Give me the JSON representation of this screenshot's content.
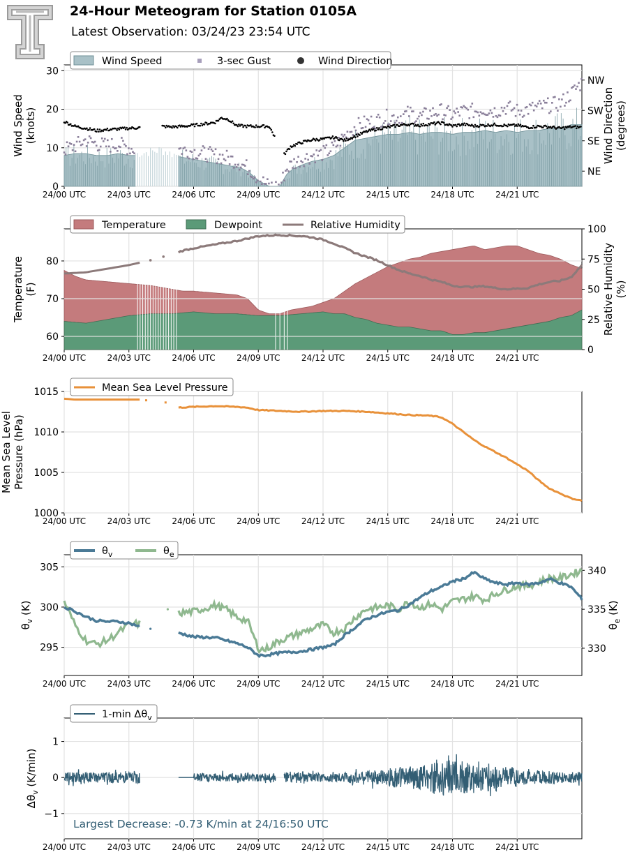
{
  "header": {
    "title": "24-Hour Meteogram for Station 0105A",
    "subtitle": "Latest Observation: 03/24/23 23:54 UTC",
    "logo_letter": "T"
  },
  "x_axis": {
    "ticks": [
      "24/00 UTC",
      "24/03 UTC",
      "24/06 UTC",
      "24/09 UTC",
      "24/12 UTC",
      "24/15 UTC",
      "24/18 UTC",
      "24/21 UTC"
    ],
    "range_hours": [
      0,
      24
    ]
  },
  "chart_data": [
    {
      "type": "area",
      "id": "wind",
      "ylabel": "Wind Speed\n(knots)",
      "ylim": [
        0,
        31.5
      ],
      "yticks": [
        "0",
        "10",
        "20",
        "30"
      ],
      "y2label": "Wind Direction\n(degrees)",
      "y2lim": [
        0,
        360
      ],
      "y2ticks": [
        {
          "label": "NE",
          "value": 45
        },
        {
          "label": "SE",
          "value": 135
        },
        {
          "label": "SW",
          "value": 225
        },
        {
          "label": "NW",
          "value": 315
        }
      ],
      "legend": [
        "Wind Speed",
        "3-sec Gust",
        "Wind Direction"
      ],
      "series": [
        {
          "name": "Wind Speed",
          "kind": "area",
          "color": "#a9c1c7",
          "x": [
            0,
            0.5,
            1,
            1.5,
            2,
            2.5,
            3,
            3.3,
            4.5,
            5,
            5.5,
            6,
            6.5,
            7,
            7.5,
            8,
            8.3,
            8.6,
            9,
            9.5,
            10,
            10.3,
            10.6,
            11,
            11.5,
            12,
            12.5,
            13,
            13.5,
            14,
            14.5,
            15,
            15.5,
            16,
            16.5,
            17,
            17.5,
            18,
            18.5,
            19,
            19.5,
            20,
            20.5,
            21,
            21.5,
            22,
            22.5,
            23,
            23.5,
            24
          ],
          "y": [
            8,
            8.5,
            8.5,
            8,
            8,
            8.5,
            8,
            8,
            9,
            8,
            7.5,
            7,
            6.5,
            6,
            5.5,
            5,
            4.5,
            3.5,
            1.5,
            0,
            0,
            3,
            4.5,
            5.5,
            6.5,
            7,
            8,
            10,
            12,
            12.5,
            13,
            13.5,
            13.5,
            14,
            13.5,
            14,
            14,
            13.5,
            14,
            14,
            14.5,
            14,
            14.5,
            14,
            14.5,
            14.5,
            15,
            15,
            16,
            16
          ]
        },
        {
          "name": "3-sec Gust",
          "kind": "points",
          "color": "#8a7f9a",
          "x": [
            0,
            0.5,
            1,
            1.5,
            2,
            2.5,
            3,
            3.3,
            4.5,
            5,
            5.5,
            6,
            6.5,
            7,
            7.5,
            8,
            8.3,
            8.6,
            9,
            9.5,
            10,
            10.3,
            10.6,
            11,
            11.5,
            12,
            12.5,
            13,
            13.5,
            14,
            14.5,
            15,
            15.5,
            16,
            16.5,
            17,
            17.5,
            18,
            18.5,
            19,
            19.5,
            20,
            20.5,
            21,
            21.5,
            22,
            22.5,
            23,
            23.5,
            24
          ],
          "y": [
            9.5,
            10.5,
            12,
            11,
            10.5,
            11,
            10,
            9.5,
            11,
            10,
            9.5,
            9,
            8.5,
            8,
            7.5,
            6.5,
            5.5,
            4.5,
            2,
            0,
            0,
            4.5,
            6,
            7,
            8,
            8.5,
            10,
            13,
            15.5,
            16.5,
            17,
            18,
            18,
            19,
            18,
            19,
            19.5,
            18.5,
            19.5,
            19.5,
            20,
            19.5,
            20.5,
            19.5,
            20,
            20.5,
            21,
            21.5,
            24,
            27
          ]
        },
        {
          "name": "Wind Direction",
          "kind": "points",
          "axis": "right",
          "color": "#000000",
          "x": [
            0,
            0.5,
            1,
            1.5,
            2,
            2.5,
            3,
            3.5,
            4.5,
            5,
            5.5,
            6,
            6.5,
            7,
            7.3,
            7.6,
            8,
            8.5,
            9,
            9.5,
            10.2,
            10.5,
            11,
            11.5,
            12,
            12.5,
            13,
            13.5,
            14,
            14.5,
            15,
            15.5,
            16,
            16.5,
            17,
            17.5,
            18,
            18.5,
            19,
            19.5,
            20,
            20.5,
            21,
            21.5,
            22,
            22.5,
            23,
            23.5,
            24
          ],
          "y": [
            192,
            178,
            172,
            165,
            168,
            170,
            172,
            174,
            178,
            176,
            178,
            181,
            185,
            190,
            203,
            199,
            180,
            178,
            178,
            178,
            95,
            118,
            130,
            138,
            140,
            145,
            136,
            149,
            162,
            170,
            175,
            181,
            184,
            181,
            185,
            188,
            179,
            184,
            179,
            181,
            183,
            180,
            181,
            175,
            178,
            176,
            172,
            176,
            175
          ]
        }
      ]
    },
    {
      "type": "area",
      "id": "thermo",
      "ylabel": "Temperature\n(F)",
      "ylim": [
        56.5,
        88.5
      ],
      "yticks": [
        "60",
        "70",
        "80"
      ],
      "y2label": "Relative Humidity\n(%)",
      "y2lim": [
        0,
        100
      ],
      "y2ticks": [
        "0",
        "25",
        "50",
        "75",
        "100"
      ],
      "legend": [
        "Temperature",
        "Dewpoint",
        "Relative Humidity"
      ],
      "series": [
        {
          "name": "Temperature",
          "kind": "area",
          "color": "#c47b7d",
          "x": [
            0,
            0.5,
            1,
            2,
            3,
            4,
            5,
            5.5,
            6,
            7,
            8,
            8.5,
            9,
            9.5,
            10,
            10.5,
            11,
            11.5,
            12,
            12.5,
            13,
            13.5,
            14,
            14.5,
            15,
            15.5,
            16,
            16.5,
            17,
            17.5,
            18,
            18.5,
            19,
            19.5,
            20,
            20.5,
            21,
            21.5,
            22,
            22.5,
            23,
            23.5,
            24
          ],
          "y": [
            77.5,
            76,
            75,
            74.5,
            74,
            73.5,
            72.5,
            72,
            72,
            71.5,
            71,
            70,
            67,
            66,
            66,
            67,
            67.5,
            68,
            69,
            70,
            72,
            74,
            75.5,
            77,
            78.5,
            79.5,
            80.5,
            81,
            82,
            82.5,
            83,
            83.5,
            84,
            83,
            83.5,
            84,
            84,
            83,
            82,
            81.5,
            80.5,
            79,
            78
          ]
        },
        {
          "name": "Dewpoint",
          "kind": "area",
          "color": "#5b9a78",
          "x": [
            0,
            1,
            2,
            3,
            4,
            5,
            6,
            7,
            8,
            9,
            10,
            11,
            12,
            12.5,
            13,
            13.5,
            14,
            14.5,
            15,
            15.5,
            16,
            16.5,
            17,
            17.5,
            18,
            18.5,
            19,
            19.5,
            20,
            20.5,
            21,
            21.5,
            22,
            22.5,
            23,
            23.5,
            24
          ],
          "y": [
            64,
            63.5,
            64.5,
            65.5,
            66,
            66,
            66.5,
            66,
            66,
            65.5,
            65.5,
            66,
            66.5,
            66,
            66,
            65,
            64.5,
            63.5,
            63,
            62.5,
            62.5,
            62,
            61.5,
            61.5,
            60.5,
            60.5,
            61,
            61,
            61.5,
            62,
            62.5,
            63,
            63.5,
            64,
            65,
            65.5,
            67
          ]
        },
        {
          "name": "Relative Humidity",
          "kind": "line",
          "axis": "right",
          "color": "#8c7a7a",
          "x": [
            0,
            1,
            2,
            3,
            4,
            5,
            5.5,
            6,
            7,
            8,
            9,
            10,
            11,
            11.5,
            12,
            12.5,
            13,
            13.5,
            14,
            14.5,
            15,
            15.5,
            16,
            16.5,
            17,
            17.5,
            18,
            18.5,
            19,
            19.5,
            20,
            20.5,
            21,
            21.5,
            22,
            22.5,
            23,
            23.5,
            24
          ],
          "y": [
            63,
            64,
            67,
            70,
            74,
            79,
            82,
            84,
            87,
            90,
            94,
            95,
            94,
            93,
            91,
            88,
            84,
            80,
            77,
            74,
            70,
            66,
            63,
            61,
            58,
            56,
            53,
            52,
            52,
            52.5,
            51,
            50,
            50.5,
            51,
            54,
            56,
            57,
            60,
            70
          ]
        }
      ]
    },
    {
      "type": "line",
      "id": "pressure",
      "ylabel": "Mean Sea Level\nPressure (hPa)",
      "ylim": [
        1000,
        1015
      ],
      "yticks": [
        "1000",
        "1005",
        "1010",
        "1015"
      ],
      "legend": [
        "Mean Sea Level Pressure"
      ],
      "series": [
        {
          "name": "Mean Sea Level Pressure",
          "color": "#e8913a",
          "x": [
            0,
            0.5,
            1,
            2,
            3,
            3.5,
            5.3,
            6,
            7,
            8,
            8.5,
            9,
            10,
            11,
            12,
            13,
            14,
            14.5,
            15,
            16,
            17,
            17.5,
            18,
            18.5,
            19,
            19.5,
            20,
            20.5,
            21,
            21.5,
            22,
            22.5,
            23,
            23.5,
            24
          ],
          "y": [
            1014.1,
            1014,
            1014,
            1014,
            1014,
            1014,
            1013,
            1013.1,
            1013.2,
            1013.1,
            1013,
            1012.7,
            1012.6,
            1012.5,
            1012.6,
            1012.6,
            1012.5,
            1012.4,
            1012.3,
            1012.1,
            1012,
            1011.8,
            1011,
            1010,
            1009,
            1008.2,
            1007.5,
            1006.8,
            1006,
            1005.2,
            1004,
            1003,
            1002.4,
            1001.8,
            1001.5
          ]
        }
      ]
    },
    {
      "type": "line",
      "id": "theta",
      "ylabel": "θv (K)",
      "ylim": [
        291.5,
        306.5
      ],
      "yticks": [
        "295",
        "300",
        "305"
      ],
      "y2label": "θe (K)",
      "y2lim": [
        326.5,
        342
      ],
      "y2ticks": [
        "330",
        "335",
        "340"
      ],
      "legend": [
        "θv",
        "θe"
      ],
      "series": [
        {
          "name": "θv",
          "color": "#4a7a96",
          "x": [
            0,
            0.5,
            1,
            1.5,
            2,
            2.5,
            3,
            3.5,
            5.3,
            6,
            7,
            8,
            8.5,
            9,
            9.3,
            10,
            11,
            12,
            12.5,
            13,
            13.5,
            14,
            14.5,
            15,
            15.5,
            16,
            16.5,
            17,
            17.5,
            18,
            18.5,
            19,
            19.5,
            20,
            20.5,
            21,
            21.5,
            22,
            22.5,
            23,
            23.5,
            24
          ],
          "y": [
            300,
            299.5,
            298.8,
            298.3,
            298.2,
            298.2,
            298,
            297.6,
            296.8,
            296.3,
            296.2,
            295.5,
            295,
            294,
            294,
            294.3,
            294.5,
            295,
            295.3,
            296.5,
            297.5,
            298.5,
            299,
            299.4,
            299.6,
            300.3,
            301.2,
            302,
            302.5,
            303.2,
            303.5,
            304.3,
            303.5,
            303,
            302.8,
            303,
            302.8,
            303,
            303.5,
            303,
            302.5,
            301
          ]
        },
        {
          "name": "θe",
          "color": "#8fb88f",
          "axis": "right",
          "x": [
            0,
            0.5,
            1,
            1.5,
            2,
            2.5,
            3,
            3.5,
            5.3,
            6,
            7,
            7.5,
            8,
            8.5,
            9,
            9.3,
            10,
            10.5,
            11,
            11.5,
            12,
            12.5,
            13,
            13.5,
            14,
            14.5,
            15,
            15.5,
            16,
            16.5,
            17,
            17.5,
            18,
            18.5,
            19,
            19.5,
            20,
            20.5,
            21,
            21.5,
            22,
            22.5,
            23,
            23.5,
            24
          ],
          "y": [
            336,
            333,
            331,
            330.5,
            331,
            332,
            333,
            333.2,
            334.5,
            334.7,
            335.5,
            335,
            334,
            333.5,
            330,
            329.8,
            331,
            331.5,
            332,
            332.5,
            333,
            332,
            332.5,
            334,
            335,
            335.2,
            335.5,
            335,
            336,
            335.2,
            335.7,
            335,
            336,
            336.3,
            336.7,
            336.2,
            337,
            337.5,
            338,
            338,
            338.5,
            339,
            339,
            339.5,
            340
          ]
        }
      ]
    },
    {
      "type": "line",
      "id": "dtheta",
      "ylabel": "Δθv (K/min)",
      "ylim": [
        -1.7,
        1.65
      ],
      "yticks": [
        "−1",
        "0",
        "1"
      ],
      "legend": [
        "1-min Δθv"
      ],
      "annotation": "Largest Decrease: -0.73 K/min at 24/16:50 UTC",
      "series": [
        {
          "name": "1-min Δθv",
          "color": "#335e74",
          "segments": [
            [
              0,
              3.5
            ],
            [
              5.3,
              9.8
            ],
            [
              10.2,
              24
            ]
          ],
          "amplitude_by_hour": [
            0.15,
            0.15,
            0.15,
            0.18,
            0,
            0,
            0.12,
            0.12,
            0.12,
            0.12,
            0.15,
            0.12,
            0.12,
            0.15,
            0.2,
            0.28,
            0.35,
            0.5,
            0.45,
            0.4,
            0.3,
            0.2,
            0.18,
            0.15,
            0.12
          ]
        }
      ]
    }
  ]
}
